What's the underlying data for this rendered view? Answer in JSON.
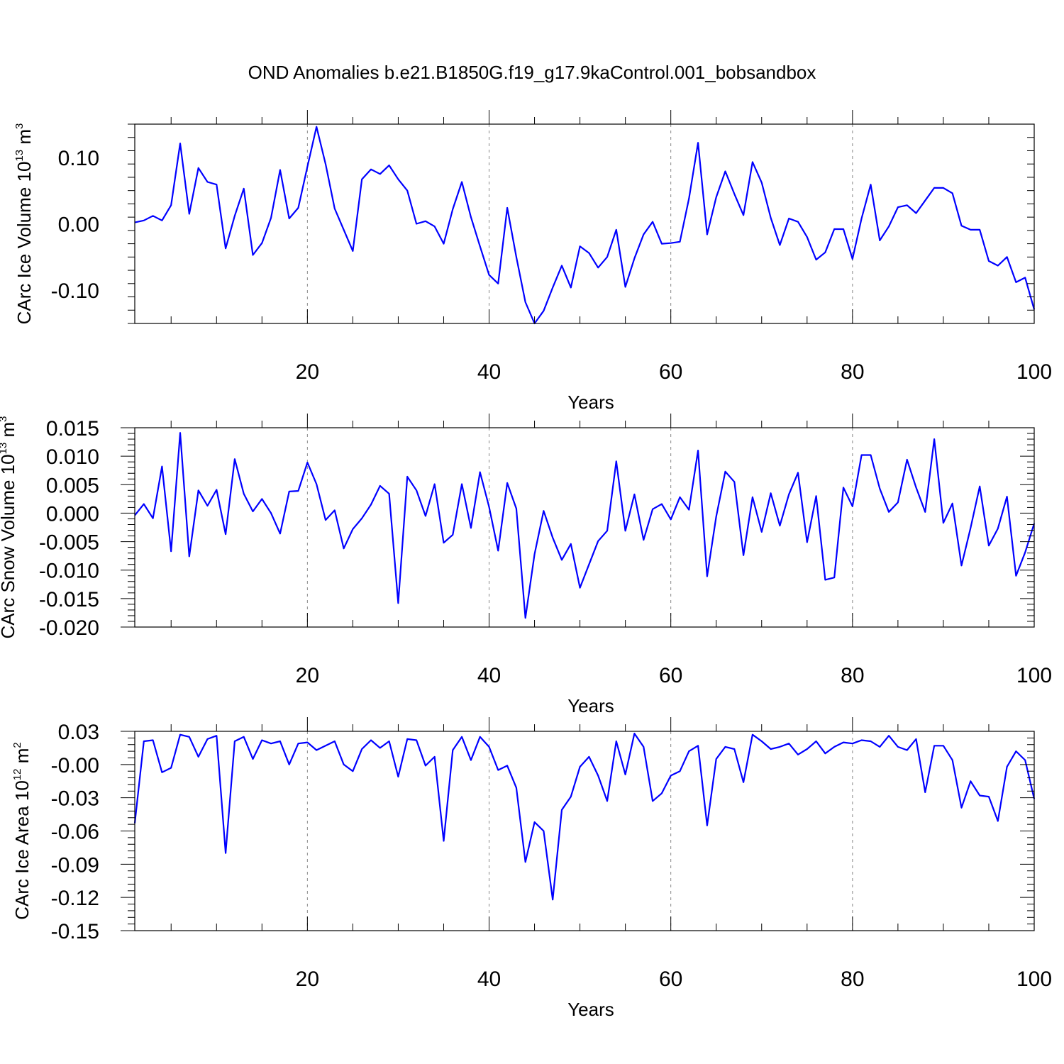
{
  "title": "OND Anomalies b.e21.B1850G.f19_g17.9kaControl.001_bobsandbox",
  "colors": {
    "line": "#0000ff",
    "axis": "#000000",
    "grid": "#888888"
  },
  "chart_data": [
    {
      "type": "line",
      "ylabel_main": "CArc Ice Volume 10",
      "ylabel_exp": "13",
      "ylabel_unit": "m",
      "ylabel_unit_exp": "3",
      "xlabel": "Years",
      "xlim": [
        1,
        100
      ],
      "ylim": [
        -0.15,
        0.15
      ],
      "xticks": [
        "20",
        "40",
        "60",
        "80",
        "100"
      ],
      "yticks": [
        "0.10",
        "0.00",
        "-0.10"
      ],
      "ytick_values": [
        0.1,
        0.0,
        -0.1
      ],
      "series": [
        {
          "name": "CArc Ice Volume",
          "values": [
            0.002,
            0.005,
            0.012,
            0.005,
            0.028,
            0.121,
            0.015,
            0.084,
            0.063,
            0.059,
            -0.037,
            0.012,
            0.053,
            -0.047,
            -0.029,
            0.009,
            0.081,
            0.008,
            0.024,
            0.086,
            0.146,
            0.09,
            0.023,
            -0.009,
            -0.041,
            0.067,
            0.082,
            0.075,
            0.088,
            0.067,
            0.05,
            0.0,
            0.004,
            -0.004,
            -0.03,
            0.022,
            0.063,
            0.01,
            -0.034,
            -0.077,
            -0.09,
            0.024,
            -0.05,
            -0.118,
            -0.15,
            -0.131,
            -0.096,
            -0.063,
            -0.096,
            -0.034,
            -0.044,
            -0.066,
            -0.05,
            -0.009,
            -0.095,
            -0.052,
            -0.016,
            0.003,
            -0.03,
            -0.029,
            -0.027,
            0.038,
            0.122,
            -0.016,
            0.04,
            0.079,
            0.045,
            0.013,
            0.093,
            0.062,
            0.009,
            -0.032,
            0.008,
            0.003,
            -0.02,
            -0.054,
            -0.043,
            -0.008,
            -0.008,
            -0.053,
            0.008,
            0.059,
            -0.025,
            -0.004,
            0.025,
            0.028,
            0.016,
            0.035,
            0.054,
            0.054,
            0.046,
            -0.003,
            -0.009,
            -0.009,
            -0.056,
            -0.063,
            -0.05,
            -0.088,
            -0.081,
            -0.129
          ]
        }
      ]
    },
    {
      "type": "line",
      "ylabel_main": "CArc Snow Volume 10",
      "ylabel_exp": "13",
      "ylabel_unit": "m",
      "ylabel_unit_exp": "3",
      "xlabel": "Years",
      "xlim": [
        1,
        100
      ],
      "ylim": [
        -0.02,
        0.015
      ],
      "xticks": [
        "20",
        "40",
        "60",
        "80",
        "100"
      ],
      "yticks": [
        "0.015",
        "0.010",
        "0.005",
        "0.000",
        "-0.005",
        "-0.010",
        "-0.015",
        "-0.020"
      ],
      "ytick_values": [
        0.015,
        0.01,
        0.005,
        0.0,
        -0.005,
        -0.01,
        -0.015,
        -0.02
      ],
      "series": [
        {
          "name": "CArc Snow Volume",
          "values": [
            -0.0004,
            0.0016,
            -0.0009,
            0.0082,
            -0.0067,
            0.0141,
            -0.0076,
            0.004,
            0.0013,
            0.0041,
            -0.0037,
            0.0095,
            0.0034,
            0.0003,
            0.0025,
            0.0,
            -0.0036,
            0.0038,
            0.0039,
            0.0089,
            0.0051,
            -0.0012,
            0.0005,
            -0.0062,
            -0.0028,
            -0.0009,
            0.0015,
            0.0048,
            0.0034,
            -0.0158,
            0.0064,
            0.004,
            -0.0005,
            0.0051,
            -0.0052,
            -0.0038,
            0.0051,
            -0.0026,
            0.0072,
            0.0011,
            -0.0066,
            0.0053,
            0.0008,
            -0.0184,
            -0.0072,
            0.0004,
            -0.0043,
            -0.0082,
            -0.0054,
            -0.0131,
            -0.009,
            -0.0049,
            -0.0031,
            0.0091,
            -0.0031,
            0.0033,
            -0.0047,
            0.0007,
            0.0016,
            -0.0011,
            0.0028,
            0.0006,
            0.011,
            -0.0111,
            -0.0006,
            0.0073,
            0.0055,
            -0.0074,
            0.0028,
            -0.0033,
            0.0035,
            -0.0022,
            0.0033,
            0.0071,
            -0.0051,
            0.003,
            -0.0117,
            -0.0113,
            0.0045,
            0.0012,
            0.0102,
            0.0102,
            0.0043,
            0.0002,
            0.0019,
            0.0094,
            0.0045,
            0.0002,
            0.013,
            -0.0017,
            0.0017,
            -0.0092,
            -0.0026,
            0.0047,
            -0.0057,
            -0.0027,
            0.0029,
            -0.011,
            -0.0069,
            -0.0018
          ]
        }
      ]
    },
    {
      "type": "line",
      "ylabel_main": "CArc Ice Area 10",
      "ylabel_exp": "12",
      "ylabel_unit": "m",
      "ylabel_unit_exp": "2",
      "xlabel": "Years",
      "xlim": [
        1,
        100
      ],
      "ylim": [
        -0.15,
        0.03
      ],
      "xticks": [
        "20",
        "40",
        "60",
        "80",
        "100"
      ],
      "yticks": [
        "0.03",
        "-0.00",
        "-0.03",
        "-0.06",
        "-0.09",
        "-0.12",
        "-0.15"
      ],
      "ytick_values": [
        0.03,
        0.0,
        -0.03,
        -0.06,
        -0.09,
        -0.12,
        -0.15
      ],
      "series": [
        {
          "name": "CArc Ice Area",
          "values": [
            -0.053,
            0.021,
            0.022,
            -0.007,
            -0.003,
            0.027,
            0.025,
            0.007,
            0.023,
            0.026,
            -0.08,
            0.021,
            0.025,
            0.005,
            0.022,
            0.019,
            0.021,
            0.0,
            0.019,
            0.02,
            0.013,
            0.017,
            0.021,
            0.0,
            -0.006,
            0.014,
            0.022,
            0.015,
            0.021,
            -0.011,
            0.023,
            0.022,
            -0.001,
            0.007,
            -0.069,
            0.013,
            0.025,
            0.004,
            0.025,
            0.016,
            -0.005,
            -0.001,
            -0.021,
            -0.088,
            -0.052,
            -0.06,
            -0.122,
            -0.041,
            -0.029,
            -0.002,
            0.007,
            -0.01,
            -0.033,
            0.021,
            -0.009,
            0.028,
            0.016,
            -0.033,
            -0.026,
            -0.01,
            -0.006,
            0.012,
            0.017,
            -0.055,
            0.005,
            0.016,
            0.014,
            -0.016,
            0.027,
            0.021,
            0.014,
            0.016,
            0.019,
            0.009,
            0.014,
            0.021,
            0.01,
            0.016,
            0.02,
            0.019,
            0.022,
            0.021,
            0.016,
            0.026,
            0.016,
            0.013,
            0.023,
            -0.025,
            0.017,
            0.017,
            0.004,
            -0.039,
            -0.015,
            -0.028,
            -0.029,
            -0.051,
            -0.002,
            0.012,
            0.004,
            -0.031
          ]
        }
      ]
    }
  ]
}
